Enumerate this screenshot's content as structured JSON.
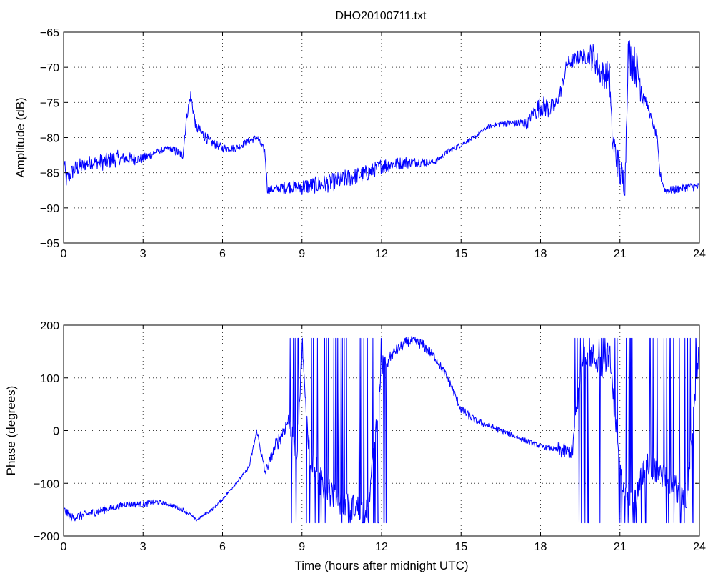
{
  "figure_title": "DHO20100711.txt",
  "colors": {
    "trace": "#0000ff",
    "axes": "#000000",
    "background": "#ffffff"
  },
  "chart_data": [
    {
      "type": "line",
      "title": "DHO20100711.txt",
      "xlabel": "",
      "ylabel": "Amplitude (dB)",
      "xlim": [
        0,
        24
      ],
      "ylim": [
        -95,
        -65
      ],
      "xticks": [
        0,
        3,
        6,
        9,
        12,
        15,
        18,
        21,
        24
      ],
      "yticks": [
        -95,
        -90,
        -85,
        -80,
        -75,
        -70,
        -65
      ],
      "grid": true,
      "series": [
        {
          "color": "#0000ff",
          "noise": [
            1.2,
            1.0,
            1.2,
            0.9,
            0.7,
            0.4,
            0.7,
            0.8,
            0.6,
            0.5,
            0.5,
            0.6,
            0.9,
            1.2,
            1.3,
            1.3,
            1.2,
            1.1,
            0.9,
            0.7,
            0.4,
            0.4,
            0.3,
            0.3,
            0.5,
            0.8,
            1.5,
            1.0,
            1.1,
            2.0,
            2.4,
            2.8,
            0.6,
            0.6,
            0.6
          ],
          "x": [
            0,
            0.1,
            0.4,
            0.7,
            1.0,
            1.5,
            2.0,
            2.5,
            3.0,
            3.5,
            4.0,
            4.5,
            4.65,
            4.8,
            5.0,
            5.5,
            6.0,
            6.5,
            7.0,
            7.3,
            7.6,
            7.7,
            8.5,
            9.0,
            10.0,
            11.0,
            11.5,
            12.0,
            13.0,
            14.0,
            14.5,
            15.0,
            15.5,
            16.0,
            16.5,
            17.0,
            17.5,
            17.7,
            18.0,
            18.5,
            18.8,
            19.0,
            19.5,
            20.0,
            20.3,
            20.6,
            20.7,
            21.0,
            21.1,
            21.2,
            21.3,
            21.6,
            22.0,
            22.4,
            22.5,
            22.7,
            23.0,
            23.5,
            24.0
          ],
          "y": [
            -83,
            -86,
            -84.5,
            -84,
            -83.5,
            -83.5,
            -83,
            -83,
            -83,
            -82,
            -81.5,
            -82.5,
            -77,
            -74,
            -78.5,
            -80.5,
            -81.5,
            -81.5,
            -80.5,
            -80,
            -82,
            -87.5,
            -87,
            -87,
            -86.5,
            -85.5,
            -85,
            -84,
            -83.5,
            -83.5,
            -82,
            -81,
            -80,
            -78.5,
            -78,
            -78,
            -78,
            -76.5,
            -75.5,
            -76,
            -73,
            -69.5,
            -68.5,
            -68.5,
            -71,
            -71,
            -80,
            -85,
            -86,
            -86,
            -68,
            -70,
            -75,
            -80,
            -85,
            -87.5,
            -87.5,
            -87,
            -87
          ]
        }
      ]
    },
    {
      "type": "line",
      "title": "",
      "xlabel": "Time (hours after midnight UTC)",
      "ylabel": "Phase (degrees)",
      "xlim": [
        0,
        24
      ],
      "ylim": [
        -200,
        200
      ],
      "xticks": [
        0,
        3,
        6,
        9,
        12,
        15,
        18,
        21,
        24
      ],
      "yticks": [
        -200,
        -100,
        0,
        100,
        200
      ],
      "grid": true,
      "series": [
        {
          "color": "#0000ff",
          "noise": [
            8,
            8,
            8,
            6,
            6,
            6,
            5,
            4,
            4,
            3,
            3,
            3,
            3,
            6,
            10,
            15,
            20,
            25,
            35,
            25,
            25,
            20,
            20,
            10,
            10,
            10,
            8,
            8,
            8,
            6,
            6,
            5,
            5,
            5,
            5,
            15,
            25,
            25,
            25,
            25,
            25,
            25,
            25,
            25,
            20
          ],
          "x": [
            0,
            0.3,
            0.8,
            1.5,
            2.0,
            2.3,
            3.0,
            3.5,
            4.0,
            4.5,
            4.8,
            5.0,
            5.3,
            5.6,
            6.0,
            6.5,
            7.0,
            7.3,
            7.6,
            8.0,
            8.5,
            8.8,
            9.0,
            9.3,
            9.8,
            10.5,
            11.5,
            12.0,
            12.5,
            13.0,
            13.5,
            14.0,
            14.5,
            15.0,
            15.5,
            16.0,
            17.0,
            18.0,
            19.0,
            19.2,
            19.6,
            20.0,
            20.3,
            20.6,
            21.0,
            21.5,
            22.0,
            22.5,
            23.0,
            23.5,
            24.0
          ],
          "y": [
            -150,
            -165,
            -160,
            -150,
            -145,
            -140,
            -140,
            -135,
            -140,
            -150,
            -160,
            -170,
            -160,
            -150,
            -130,
            -100,
            -70,
            0,
            -80,
            -30,
            20,
            -50,
            150,
            -50,
            -100,
            -140,
            -150,
            120,
            150,
            170,
            165,
            140,
            100,
            40,
            20,
            10,
            -10,
            -30,
            -40,
            -40,
            150,
            140,
            120,
            150,
            -80,
            -140,
            -60,
            -80,
            -100,
            -140,
            160
          ]
        }
      ]
    }
  ]
}
